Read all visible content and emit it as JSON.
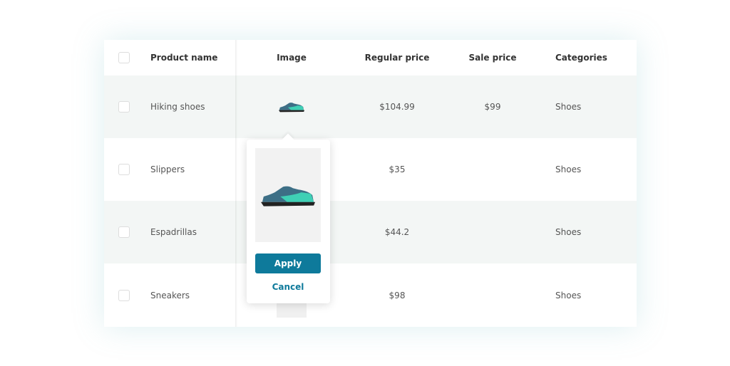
{
  "table": {
    "headers": {
      "product_name": "Product name",
      "image": "Image",
      "regular_price": "Regular price",
      "sale_price": "Sale price",
      "categories": "Categories"
    },
    "rows": [
      {
        "name": "Hiking shoes",
        "image": "shoe-thumbnail",
        "regular_price": "$104.99",
        "sale_price": "$99",
        "category": "Shoes"
      },
      {
        "name": "Slippers",
        "image": "",
        "regular_price": "$35",
        "sale_price": "",
        "category": "Shoes"
      },
      {
        "name": "Espadrillas",
        "image": "",
        "regular_price": "$44.2",
        "sale_price": "",
        "category": "Shoes"
      },
      {
        "name": "Sneakers",
        "image": "placeholder",
        "regular_price": "$98",
        "sale_price": "",
        "category": "Shoes"
      }
    ]
  },
  "popup": {
    "apply_label": "Apply",
    "cancel_label": "Cancel"
  },
  "colors": {
    "accent": "#0e7a9b",
    "row_alt": "#f3f6f5",
    "shoe_teal": "#3fd0b5",
    "shoe_blue": "#3d6f86"
  }
}
